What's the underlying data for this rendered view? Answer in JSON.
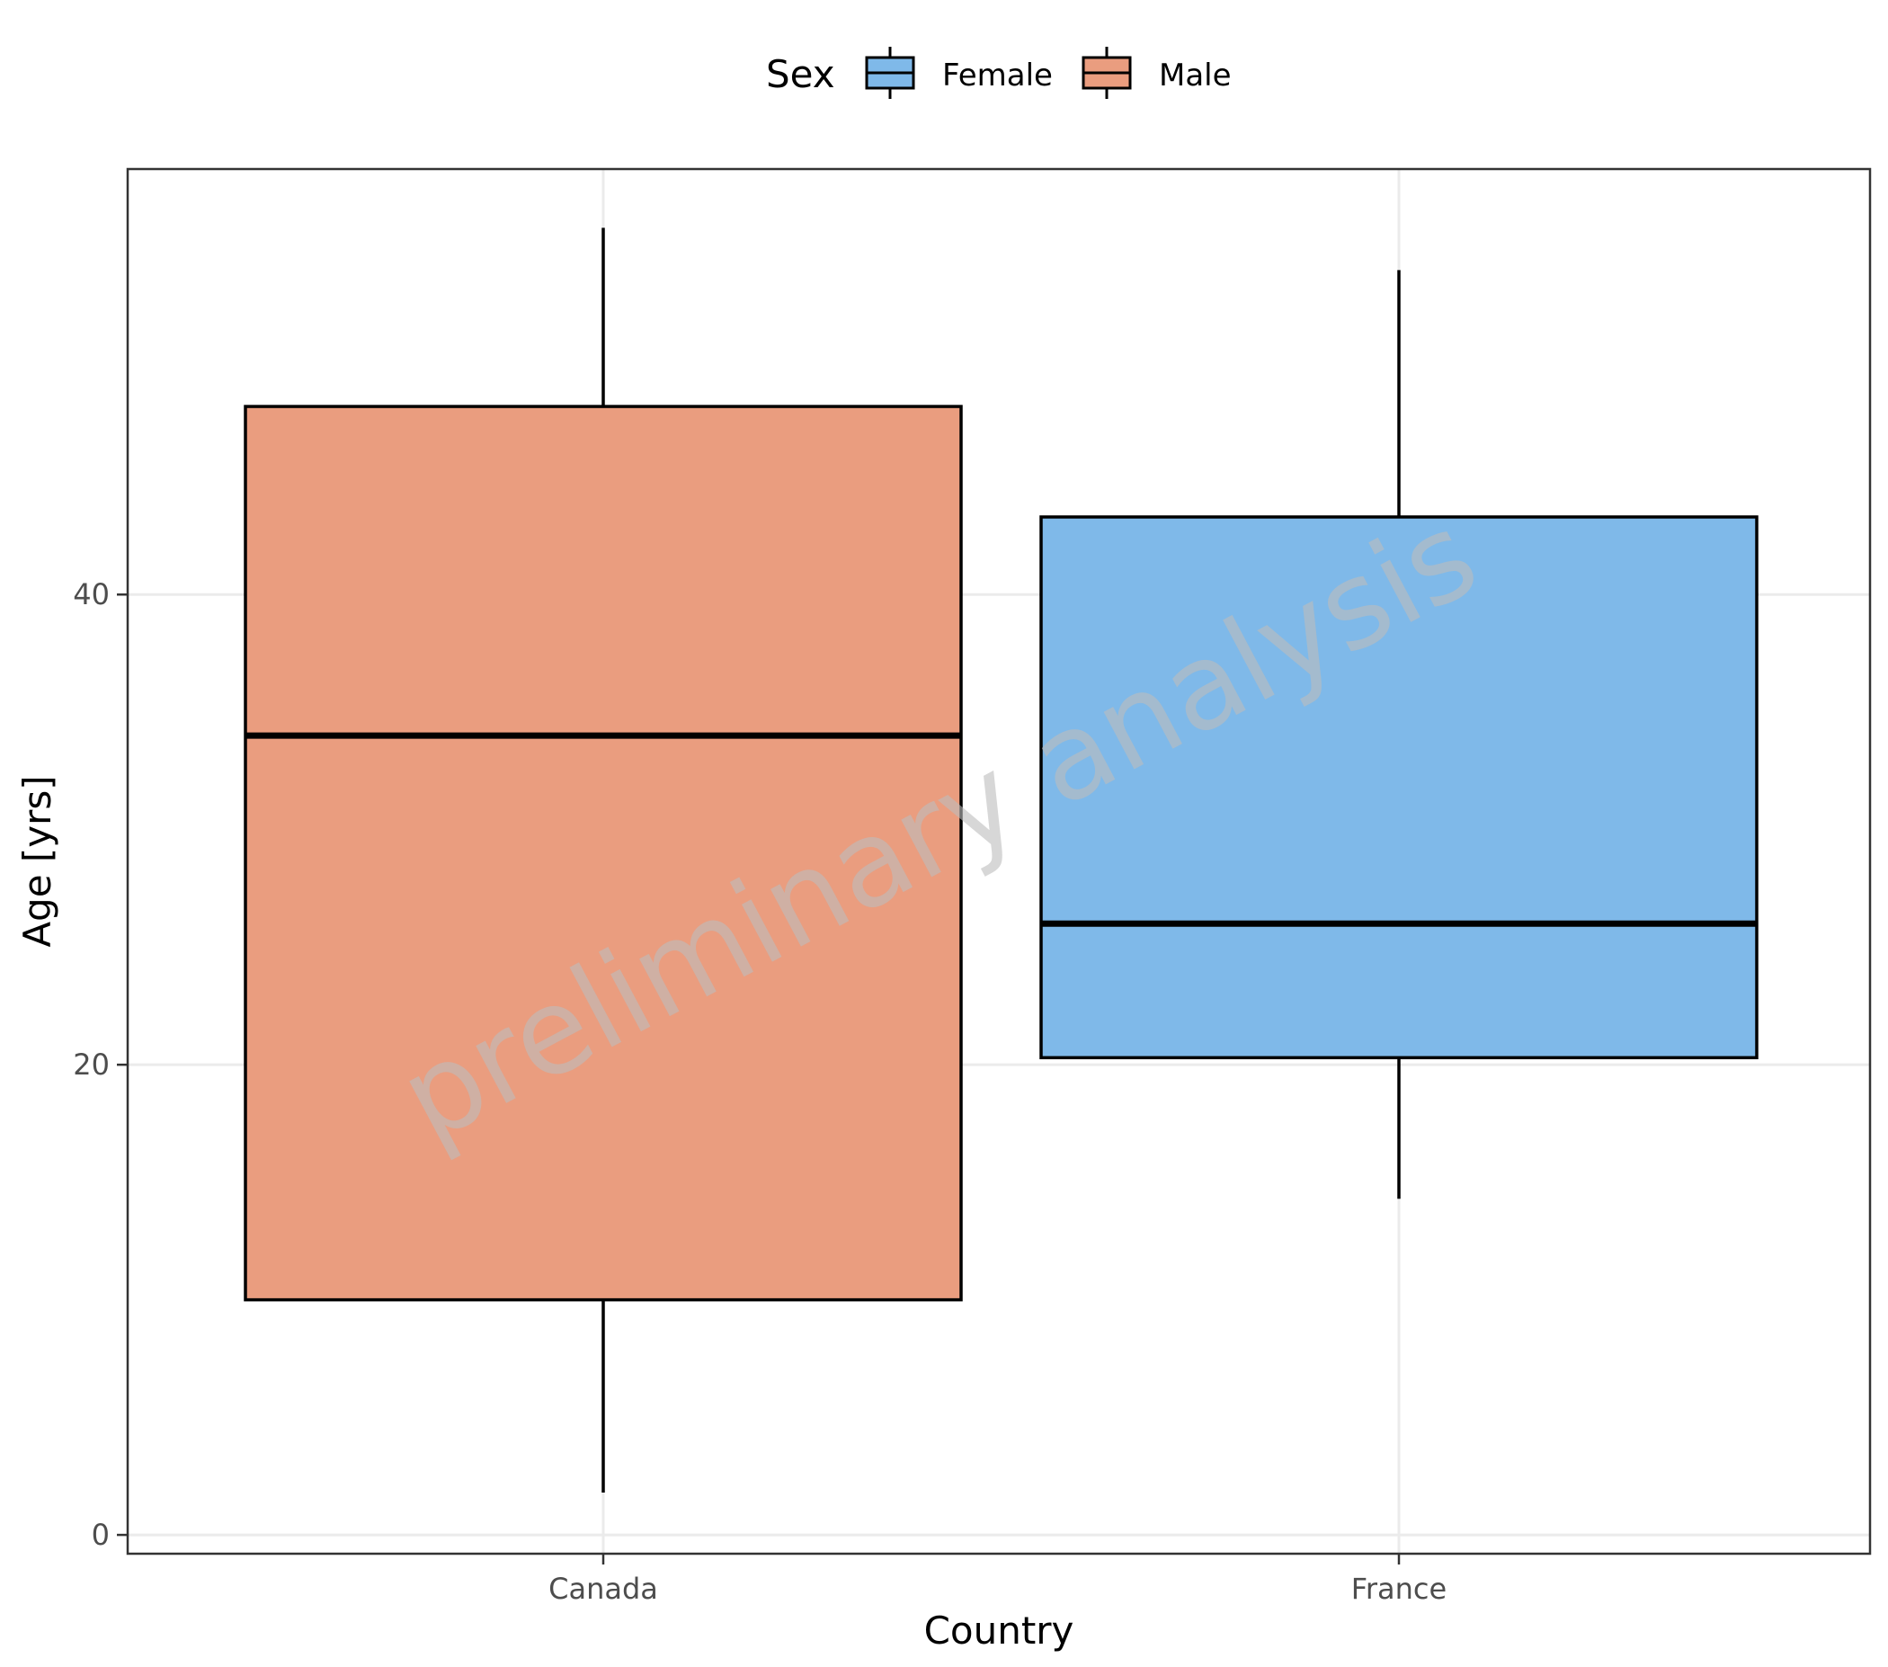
{
  "chart_data": {
    "type": "boxplot",
    "xlabel": "Country",
    "ylabel": "Age [yrs]",
    "categories": [
      "Canada",
      "France"
    ],
    "ylim": [
      -0.8,
      58.1
    ],
    "yticks": [
      0,
      20,
      40
    ],
    "grid": true,
    "legend": {
      "title": "Sex",
      "position": "top",
      "entries": [
        {
          "label": "Female",
          "color": "#7fb9e9"
        },
        {
          "label": "Male",
          "color": "#ea9d7f"
        }
      ]
    },
    "boxes": [
      {
        "category": "Canada",
        "group": "Male",
        "whisker_low": 1.8,
        "q1": 10.0,
        "median": 34.0,
        "q3": 48.0,
        "whisker_high": 55.6
      },
      {
        "category": "France",
        "group": "Female",
        "whisker_low": 14.3,
        "q1": 20.3,
        "median": 26.0,
        "q3": 43.3,
        "whisker_high": 53.8
      }
    ],
    "watermark": "preliminary analysis"
  }
}
